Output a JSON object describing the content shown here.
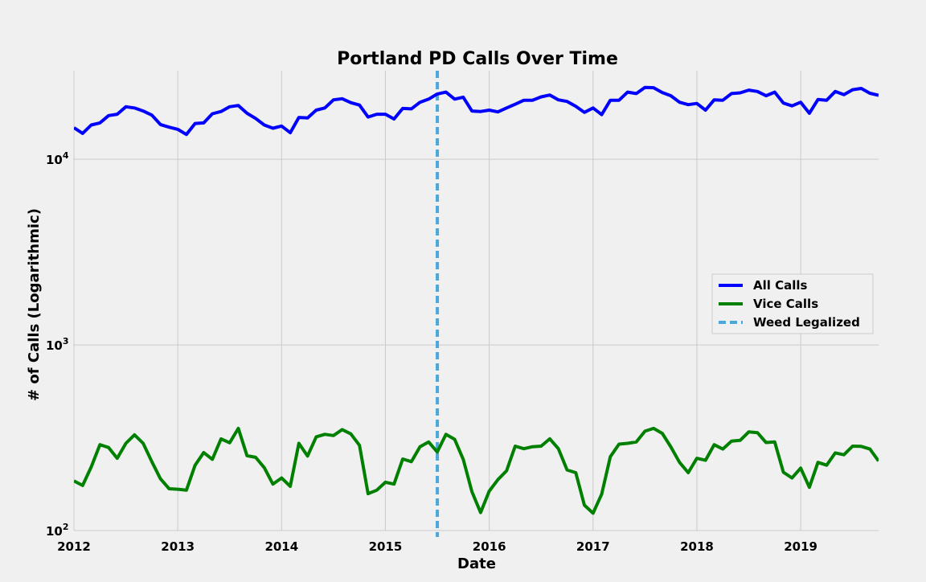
{
  "chart_data": {
    "type": "line",
    "title": "Portland PD Calls Over Time",
    "xlabel": "Date",
    "ylabel": "# of Calls (Logarithmic)",
    "xlim": [
      2012.0,
      2019.75
    ],
    "ylim": [
      100,
      30000
    ],
    "yscale": "log",
    "grid": true,
    "legend_position": "center-right",
    "x_ticks": [
      2012,
      2013,
      2014,
      2015,
      2016,
      2017,
      2018,
      2019
    ],
    "x_tick_labels": [
      "2012",
      "2013",
      "2014",
      "2015",
      "2016",
      "2017",
      "2018",
      "2019"
    ],
    "y_ticks": [
      100,
      1000,
      10000
    ],
    "y_tick_labels": [
      {
        "base": "10",
        "exp": "2"
      },
      {
        "base": "10",
        "exp": "3"
      },
      {
        "base": "10",
        "exp": "4"
      }
    ],
    "x_start": 2012.0,
    "x_step": 0.08333,
    "series": [
      {
        "name": "All Calls",
        "color": "#0000ff",
        "values": [
          14800,
          13800,
          15300,
          15700,
          17200,
          17500,
          19200,
          18900,
          18200,
          17300,
          15400,
          14900,
          14500,
          13600,
          15600,
          15700,
          17600,
          18100,
          19200,
          19500,
          17700,
          16600,
          15300,
          14700,
          15100,
          13900,
          16800,
          16700,
          18400,
          18900,
          20900,
          21200,
          20200,
          19600,
          16900,
          17500,
          17500,
          16500,
          18800,
          18700,
          20300,
          21100,
          22500,
          23000,
          21100,
          21600,
          18200,
          18100,
          18400,
          18000,
          18900,
          19800,
          20800,
          20800,
          21700,
          22200,
          20900,
          20500,
          19300,
          17900,
          18900,
          17400,
          20800,
          20800,
          23000,
          22600,
          24400,
          24300,
          22900,
          22000,
          20300,
          19700,
          20000,
          18400,
          20900,
          20800,
          22600,
          22800,
          23600,
          23200,
          22000,
          23000,
          20100,
          19400,
          20300,
          17700,
          21000,
          20800,
          23200,
          22300,
          23700,
          24100,
          22700,
          22100
        ]
      },
      {
        "name": "Vice Calls",
        "color": "#008000",
        "values": [
          185,
          175,
          220,
          290,
          280,
          245,
          295,
          328,
          295,
          235,
          190,
          168,
          167,
          165,
          225,
          263,
          242,
          312,
          297,
          355,
          253,
          248,
          218,
          178,
          192,
          173,
          295,
          252,
          320,
          330,
          325,
          350,
          332,
          288,
          158,
          165,
          182,
          178,
          243,
          235,
          283,
          300,
          265,
          330,
          310,
          242,
          162,
          125,
          163,
          188,
          210,
          285,
          276,
          283,
          285,
          312,
          276,
          212,
          205,
          137,
          124,
          157,
          250,
          292,
          295,
          300,
          343,
          355,
          334,
          282,
          233,
          205,
          245,
          239,
          290,
          275,
          303,
          306,
          340,
          337,
          298,
          300,
          206,
          192,
          217,
          171,
          233,
          225,
          262,
          256,
          285,
          284,
          275,
          237
        ]
      }
    ],
    "reference_line": {
      "name": "Weed Legalized",
      "x": 2015.5,
      "color": "#4aa8db",
      "style": "dashed"
    }
  }
}
